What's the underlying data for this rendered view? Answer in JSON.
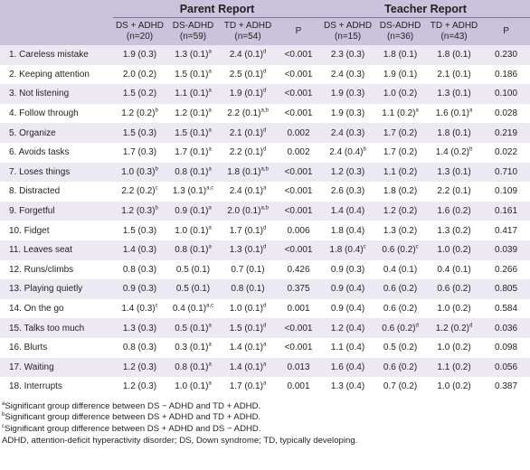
{
  "header": {
    "parent_group": "Parent Report",
    "teacher_group": "Teacher Report",
    "columns": [
      {
        "line1": "DS + ADHD",
        "line2": "(n=20)"
      },
      {
        "line1": "DS-ADHD",
        "line2": "(n=59)"
      },
      {
        "line1": "TD + ADHD",
        "line2": "(n=54)"
      },
      {
        "line1": "P",
        "line2": ""
      },
      {
        "line1": "DS + ADHD",
        "line2": "(n=15)"
      },
      {
        "line1": "DS-ADHD",
        "line2": "(n=36)"
      },
      {
        "line1": "TD + ADHD",
        "line2": "(n=43)"
      },
      {
        "line1": "P",
        "line2": ""
      }
    ]
  },
  "rows": [
    {
      "label": "1. Careless mistake",
      "cells": [
        [
          "1.9 (0.3)",
          ""
        ],
        [
          "1.3 (0.1)",
          "a"
        ],
        [
          "2.4 (0.1)",
          "d"
        ],
        [
          "<0.001",
          ""
        ],
        [
          "2.3 (0.3)",
          ""
        ],
        [
          "1.8 (0.1)",
          ""
        ],
        [
          "1.8 (0.1)",
          ""
        ],
        [
          "0.230",
          ""
        ]
      ]
    },
    {
      "label": "2. Keeping attention",
      "cells": [
        [
          "2.0 (0.2)",
          ""
        ],
        [
          "1.5 (0.1)",
          "a"
        ],
        [
          "2.5 (0.1)",
          "d"
        ],
        [
          "<0.001",
          ""
        ],
        [
          "2.4 (0.3)",
          ""
        ],
        [
          "1.9 (0.1)",
          ""
        ],
        [
          "2.1 (0.1)",
          ""
        ],
        [
          "0.186",
          ""
        ]
      ]
    },
    {
      "label": "3. Not listening",
      "cells": [
        [
          "1.5 (0.2)",
          ""
        ],
        [
          "1.1 (0.1)",
          "a"
        ],
        [
          "1.9 (0.1)",
          "d"
        ],
        [
          "<0.001",
          ""
        ],
        [
          "1.9 (0.3)",
          ""
        ],
        [
          "1.0 (0.2)",
          ""
        ],
        [
          "1.3 (0.1)",
          ""
        ],
        [
          "0.100",
          ""
        ]
      ]
    },
    {
      "label": "4. Follow through",
      "cells": [
        [
          "1.2 (0.2)",
          "b"
        ],
        [
          "1.2 (0.1)",
          "a"
        ],
        [
          "2.2 (0.1)",
          "a,b"
        ],
        [
          "<0.001",
          ""
        ],
        [
          "1.9 (0.3)",
          ""
        ],
        [
          "1.1 (0.2)",
          "a"
        ],
        [
          "1.6 (0.1)",
          "a"
        ],
        [
          "0.028",
          ""
        ]
      ]
    },
    {
      "label": "5. Organize",
      "cells": [
        [
          "1.5 (0.3)",
          ""
        ],
        [
          "1.5 (0.1)",
          "a"
        ],
        [
          "2.1 (0.1)",
          "d"
        ],
        [
          "0.002",
          ""
        ],
        [
          "2.4 (0.3)",
          ""
        ],
        [
          "1.7 (0.2)",
          ""
        ],
        [
          "1.8 (0.1)",
          ""
        ],
        [
          "0.219",
          ""
        ]
      ]
    },
    {
      "label": "6. Avoids tasks",
      "cells": [
        [
          "1.7 (0.3)",
          ""
        ],
        [
          "1.7 (0.1)",
          "a"
        ],
        [
          "2.2 (0.1)",
          "d"
        ],
        [
          "0.002",
          ""
        ],
        [
          "2.4 (0.4)",
          "b"
        ],
        [
          "1.7 (0.2)",
          ""
        ],
        [
          "1.4 (0.2)",
          "b"
        ],
        [
          "0.022",
          ""
        ]
      ]
    },
    {
      "label": "7. Loses things",
      "cells": [
        [
          "1.0 (0.3)",
          "b"
        ],
        [
          "0.8 (0.1)",
          "a"
        ],
        [
          "1.8 (0.1)",
          "a,b"
        ],
        [
          "<0.001",
          ""
        ],
        [
          "1.2 (0.3)",
          ""
        ],
        [
          "1.1 (0.2)",
          ""
        ],
        [
          "1.3 (0.1)",
          ""
        ],
        [
          "0.710",
          ""
        ]
      ]
    },
    {
      "label": "8. Distracted",
      "cells": [
        [
          "2.2 (0.2)",
          "c"
        ],
        [
          "1.3 (0.1)",
          "a,c"
        ],
        [
          "2.4 (0.1)",
          "a"
        ],
        [
          "<0.001",
          ""
        ],
        [
          "2.6 (0.3)",
          ""
        ],
        [
          "1.8 (0.2)",
          ""
        ],
        [
          "2.2 (0.1)",
          ""
        ],
        [
          "0.109",
          ""
        ]
      ]
    },
    {
      "label": "9. Forgetful",
      "cells": [
        [
          "1.2 (0.3)",
          "b"
        ],
        [
          "0.9 (0.1)",
          "a"
        ],
        [
          "2.0 (0.1)",
          "a,b"
        ],
        [
          "<0.001",
          ""
        ],
        [
          "1.4 (0.4)",
          ""
        ],
        [
          "1.2 (0.2)",
          ""
        ],
        [
          "1.6 (0.2)",
          ""
        ],
        [
          "0.161",
          ""
        ]
      ]
    },
    {
      "label": "10. Fidget",
      "cells": [
        [
          "1.5 (0.3)",
          ""
        ],
        [
          "1.0 (0.1)",
          "a"
        ],
        [
          "1.7 (0.1)",
          "d"
        ],
        [
          "0.006",
          ""
        ],
        [
          "1.8 (0.4)",
          ""
        ],
        [
          "1.3 (0.2)",
          ""
        ],
        [
          "1.3 (0.2)",
          ""
        ],
        [
          "0.417",
          ""
        ]
      ]
    },
    {
      "label": "11. Leaves seat",
      "cells": [
        [
          "1.4 (0.3)",
          ""
        ],
        [
          "0.8 (0.1)",
          "a"
        ],
        [
          "1.3 (0.1)",
          "d"
        ],
        [
          "<0.001",
          ""
        ],
        [
          "1.8 (0.4)",
          "c"
        ],
        [
          "0.6 (0.2)",
          "c"
        ],
        [
          "1.0 (0.2)",
          ""
        ],
        [
          "0.039",
          ""
        ]
      ]
    },
    {
      "label": "12. Runs/climbs",
      "cells": [
        [
          "0.8 (0.3)",
          ""
        ],
        [
          "0.5 (0.1)",
          ""
        ],
        [
          "0.7 (0.1)",
          ""
        ],
        [
          "0.426",
          ""
        ],
        [
          "0.9 (0.3)",
          ""
        ],
        [
          "0.4 (0.1)",
          ""
        ],
        [
          "0.4 (0.1)",
          ""
        ],
        [
          "0.266",
          ""
        ]
      ]
    },
    {
      "label": "13. Playing quietly",
      "cells": [
        [
          "0.9 (0.3)",
          ""
        ],
        [
          "0.5 (0.1)",
          ""
        ],
        [
          "0.8 (0.1)",
          ""
        ],
        [
          "0.375",
          ""
        ],
        [
          "0.9 (0.4)",
          ""
        ],
        [
          "0.6 (0.2)",
          ""
        ],
        [
          "0.6 (0.2)",
          ""
        ],
        [
          "0.805",
          ""
        ]
      ]
    },
    {
      "label": "14. On the go",
      "cells": [
        [
          "1.4 (0.3)",
          "c"
        ],
        [
          "0.4 (0.1)",
          "a,c"
        ],
        [
          "1.0 (0.1)",
          "d"
        ],
        [
          "0.001",
          ""
        ],
        [
          "0.9 (0.4)",
          ""
        ],
        [
          "0.6 (0.2)",
          ""
        ],
        [
          "1.0 (0.2)",
          ""
        ],
        [
          "0.584",
          ""
        ]
      ]
    },
    {
      "label": "15. Talks too much",
      "cells": [
        [
          "1.3 (0.3)",
          ""
        ],
        [
          "0.5 (0.1)",
          "a"
        ],
        [
          "1.5 (0.1)",
          "d"
        ],
        [
          "<0.001",
          ""
        ],
        [
          "1.2 (0.4)",
          ""
        ],
        [
          "0.6 (0.2)",
          "d"
        ],
        [
          "1.2 (0.2)",
          "d"
        ],
        [
          "0.036",
          ""
        ]
      ]
    },
    {
      "label": "16. Blurts",
      "cells": [
        [
          "0.8 (0.3)",
          ""
        ],
        [
          "0.3 (0.1)",
          "a"
        ],
        [
          "1.4 (0.1)",
          "a"
        ],
        [
          "<0.001",
          ""
        ],
        [
          "1.1 (0.4)",
          ""
        ],
        [
          "0.5 (0.2)",
          ""
        ],
        [
          "1.0 (0.2)",
          ""
        ],
        [
          "0.098",
          ""
        ]
      ]
    },
    {
      "label": "17. Waiting",
      "cells": [
        [
          "1.2 (0.3)",
          ""
        ],
        [
          "0.8 (0.1)",
          "a"
        ],
        [
          "1.4 (0.1)",
          "a"
        ],
        [
          "0.013",
          ""
        ],
        [
          "1.6 (0.4)",
          ""
        ],
        [
          "0.6 (0.2)",
          ""
        ],
        [
          "1.1 (0.2)",
          ""
        ],
        [
          "0.056",
          ""
        ]
      ]
    },
    {
      "label": "18. Interrupts",
      "cells": [
        [
          "1.2 (0.3)",
          ""
        ],
        [
          "1.0 (0.1)",
          "a"
        ],
        [
          "1.7 (0.1)",
          "a"
        ],
        [
          "0.001",
          ""
        ],
        [
          "1.3 (0.4)",
          ""
        ],
        [
          "0.7 (0.2)",
          ""
        ],
        [
          "1.0 (0.2)",
          ""
        ],
        [
          "0.387",
          ""
        ]
      ]
    }
  ],
  "notes": {
    "a": {
      "mark": "a",
      "text": "Significant group difference between DS − ADHD and TD + ADHD."
    },
    "b": {
      "mark": "b",
      "text": "Significant group difference between DS + ADHD and TD + ADHD."
    },
    "c": {
      "mark": "c",
      "text": "Significant group difference between DS + ADHD and DS − ADHD."
    },
    "abbrev": "ADHD, attention-deficit hyperactivity disorder; DS, Down syndrome; TD, typically developing."
  }
}
